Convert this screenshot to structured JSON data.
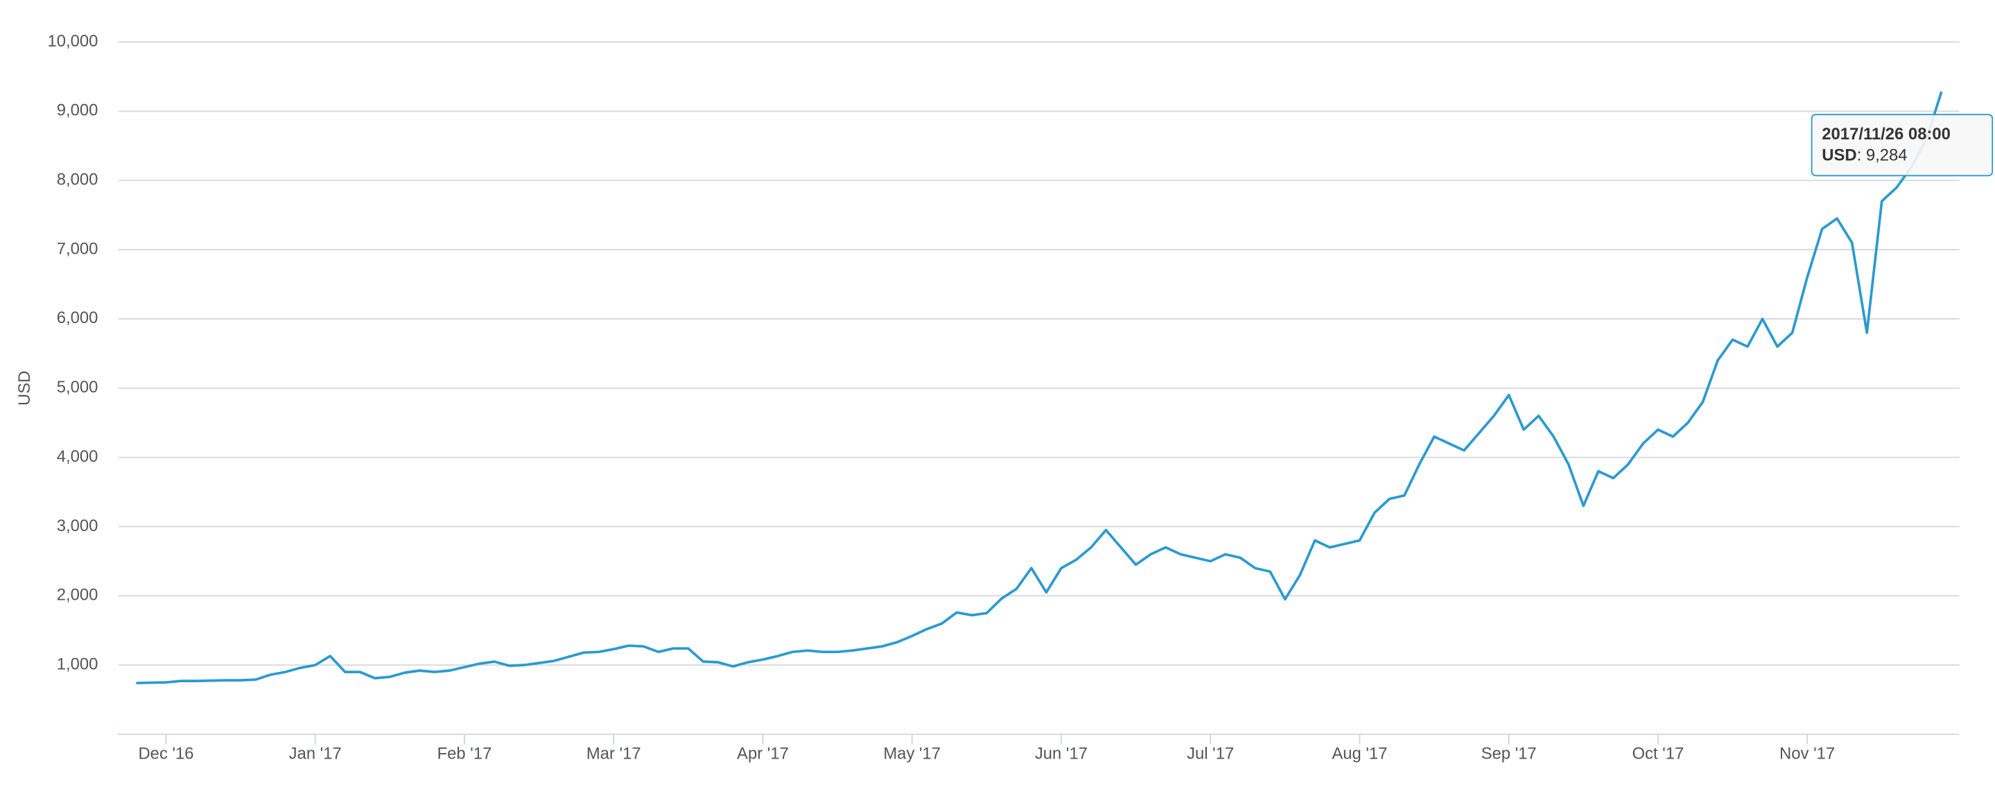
{
  "chart_data": {
    "type": "line",
    "y_axis_label": "USD",
    "categories": [
      null,
      null,
      "Dec '16",
      null,
      null,
      null,
      null,
      null,
      null,
      null,
      null,
      null,
      "Jan '17",
      null,
      null,
      null,
      null,
      null,
      null,
      null,
      null,
      null,
      "Feb '17",
      null,
      null,
      null,
      null,
      null,
      null,
      null,
      null,
      null,
      "Mar '17",
      null,
      null,
      null,
      null,
      null,
      null,
      null,
      null,
      null,
      "Apr '17",
      null,
      null,
      null,
      null,
      null,
      null,
      null,
      null,
      null,
      "May '17",
      null,
      null,
      null,
      null,
      null,
      null,
      null,
      null,
      null,
      "Jun '17",
      null,
      null,
      null,
      null,
      null,
      null,
      null,
      null,
      null,
      "Jul '17",
      null,
      null,
      null,
      null,
      null,
      null,
      null,
      null,
      null,
      "Aug '17",
      null,
      null,
      null,
      null,
      null,
      null,
      null,
      null,
      null,
      "Sep '17",
      null,
      null,
      null,
      null,
      null,
      null,
      null,
      null,
      null,
      "Oct '17",
      null,
      null,
      null,
      null,
      null,
      null,
      null,
      null,
      null,
      "Nov '17",
      null,
      null,
      null,
      null,
      null,
      null,
      null,
      null,
      null
    ],
    "series": [
      {
        "name": "USD",
        "color": "#2a9ad0",
        "values": [
          740,
          745,
          750,
          770,
          770,
          775,
          780,
          780,
          790,
          860,
          900,
          960,
          1000,
          1130,
          900,
          900,
          810,
          830,
          890,
          920,
          900,
          920,
          970,
          1020,
          1050,
          990,
          1000,
          1030,
          1060,
          1120,
          1180,
          1190,
          1230,
          1280,
          1270,
          1190,
          1240,
          1240,
          1050,
          1040,
          980,
          1040,
          1080,
          1130,
          1190,
          1210,
          1190,
          1190,
          1210,
          1240,
          1270,
          1330,
          1420,
          1520,
          1600,
          1760,
          1720,
          1750,
          1960,
          2100,
          2400,
          2050,
          2400,
          2520,
          2700,
          2950,
          2700,
          2450,
          2600,
          2700,
          2600,
          2550,
          2500,
          2600,
          2550,
          2400,
          2350,
          1950,
          2300,
          2800,
          2700,
          2750,
          2800,
          3200,
          3400,
          3450,
          3900,
          4300,
          4200,
          4100,
          4350,
          4600,
          4900,
          4400,
          4600,
          4300,
          3900,
          3300,
          3800,
          3700,
          3900,
          4200,
          4400,
          4300,
          4500,
          4800,
          5400,
          5700,
          5600,
          6000,
          5600,
          5800,
          6600,
          7300,
          7450,
          7100,
          5800,
          7700,
          7900,
          8200,
          8600,
          9284
        ]
      }
    ],
    "ylim": [
      0,
      10000
    ],
    "yticks": [
      {
        "value": 1000,
        "label": "1,000"
      },
      {
        "value": 2000,
        "label": "2,000"
      },
      {
        "value": 3000,
        "label": "3,000"
      },
      {
        "value": 4000,
        "label": "4,000"
      },
      {
        "value": 5000,
        "label": "5,000"
      },
      {
        "value": 6000,
        "label": "6,000"
      },
      {
        "value": 7000,
        "label": "7,000"
      },
      {
        "value": 8000,
        "label": "8,000"
      },
      {
        "value": 9000,
        "label": "9,000"
      },
      {
        "value": 10000,
        "label": "10,000"
      }
    ],
    "grid": true,
    "tooltip": {
      "header": "2017/11/26 08:00",
      "name": "USD",
      "value": 9284,
      "value_label": ": 9,284"
    }
  }
}
